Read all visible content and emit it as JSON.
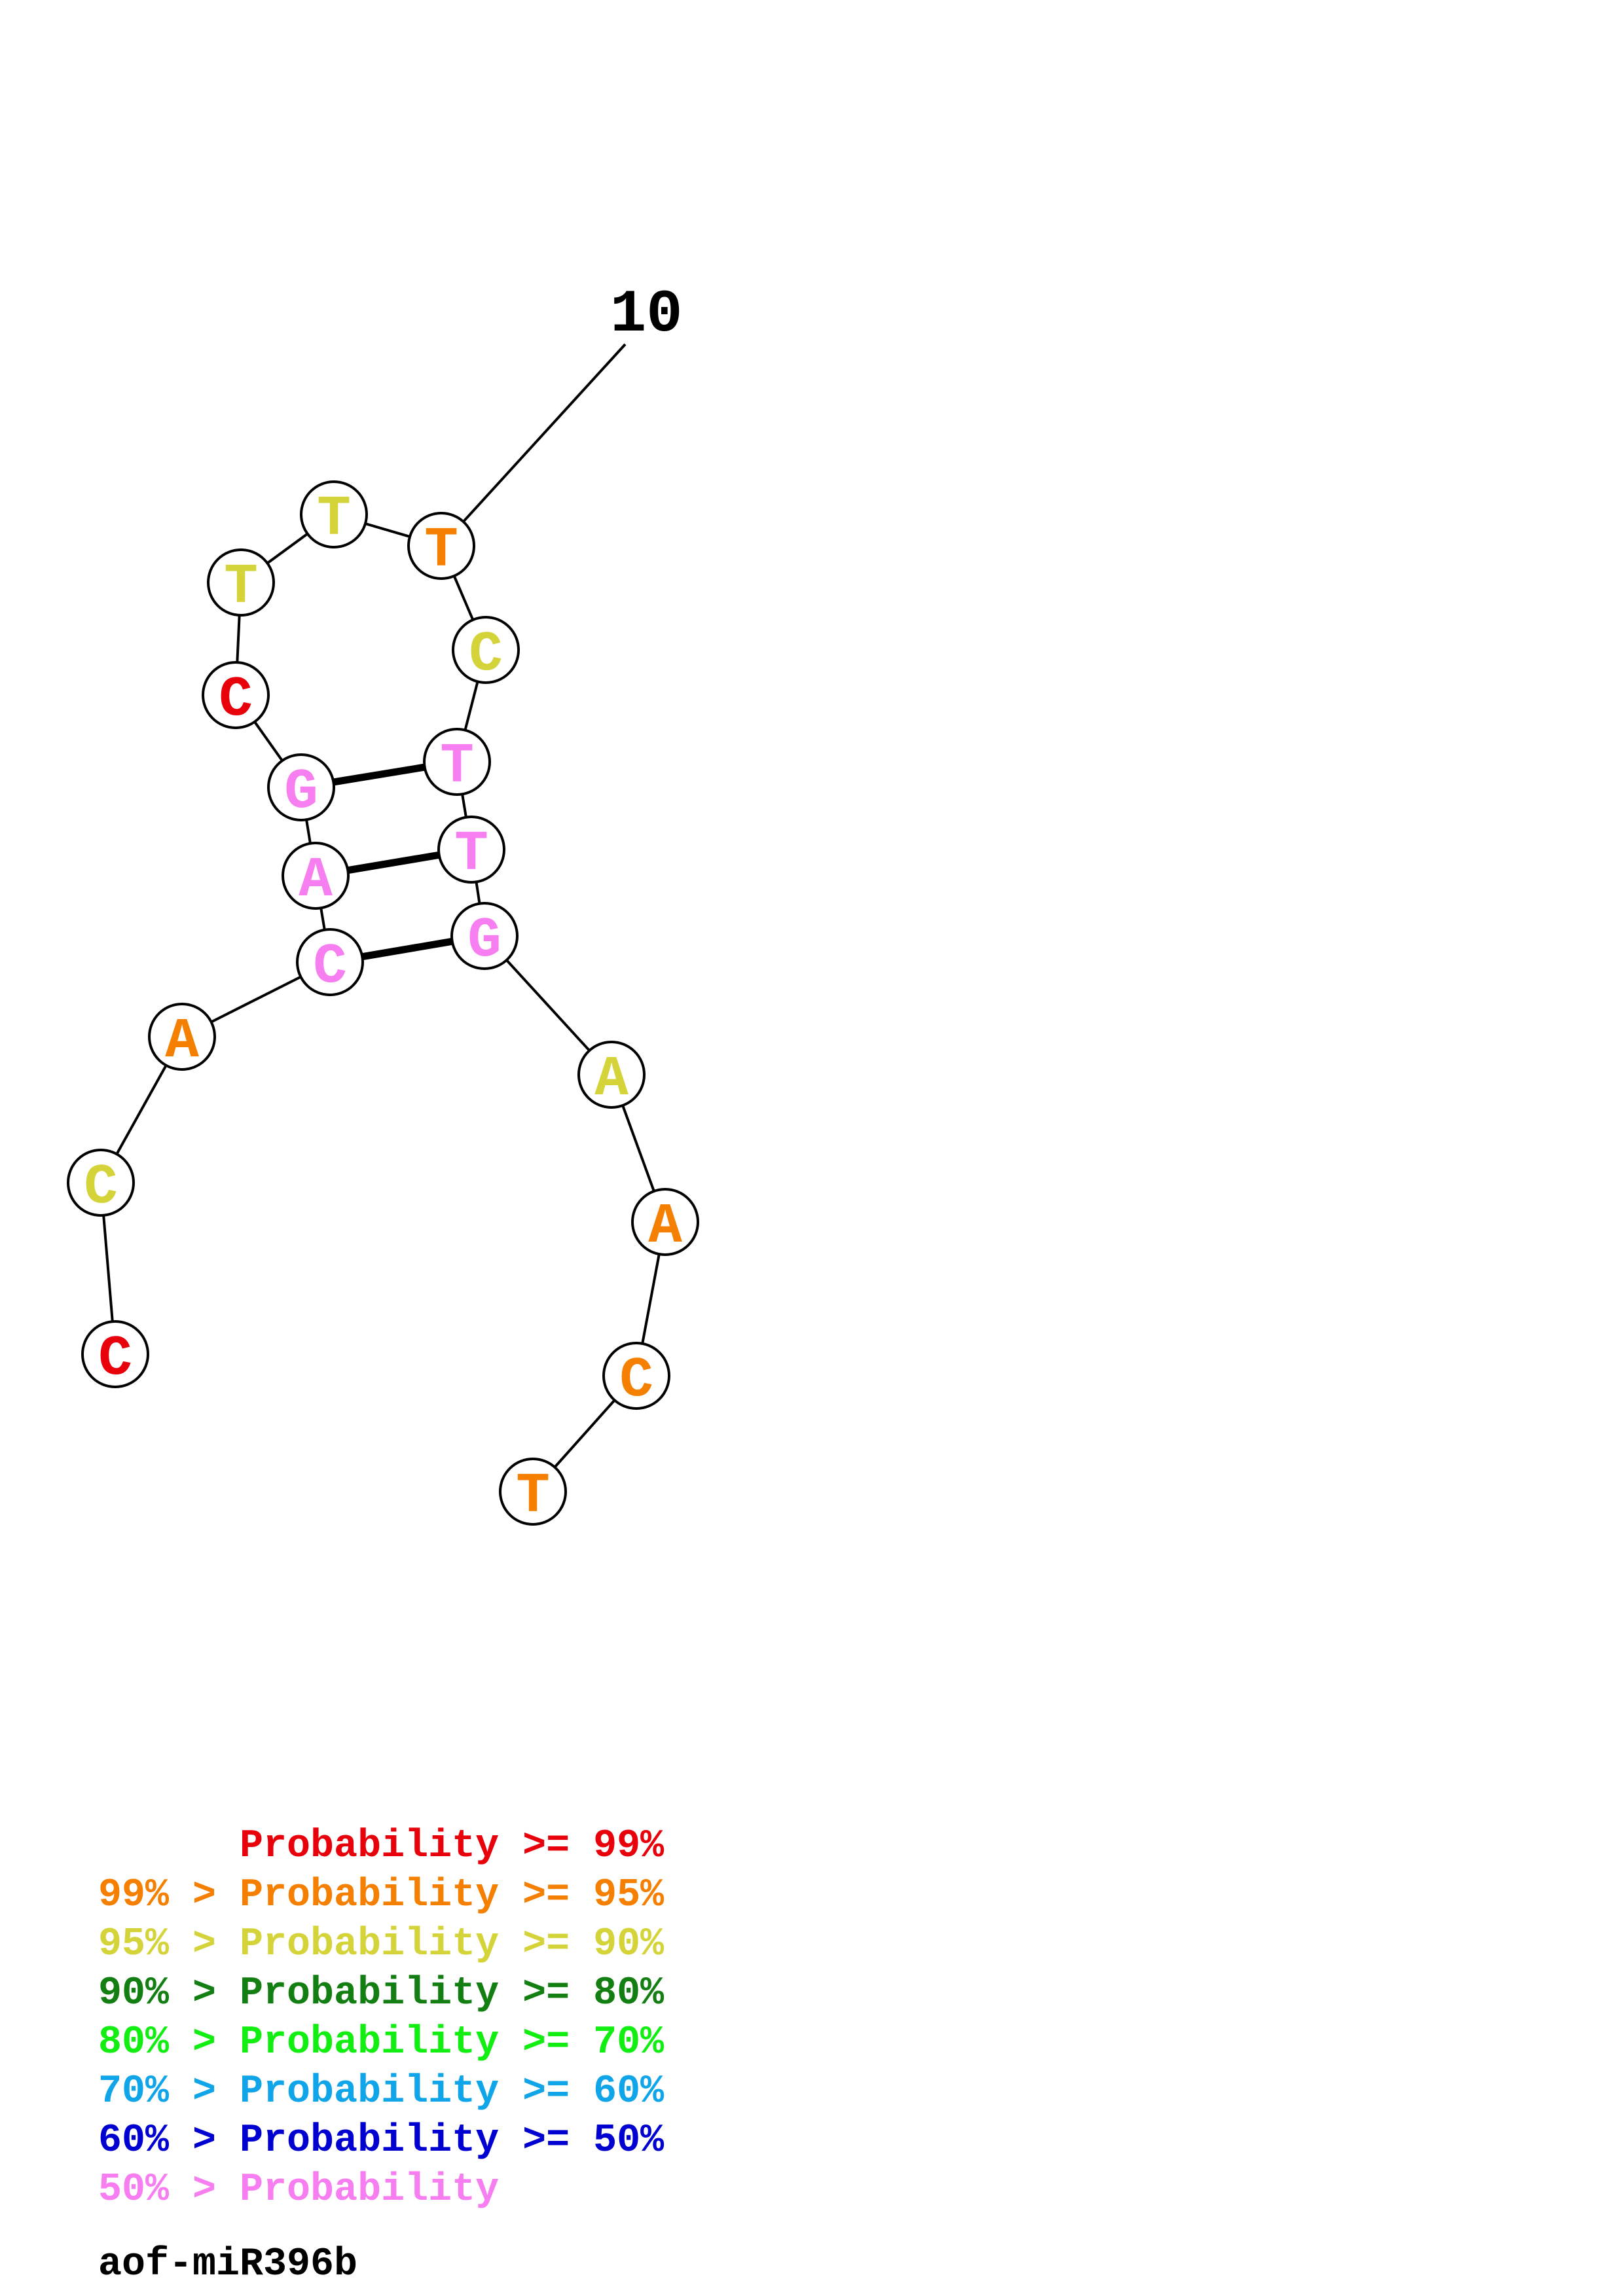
{
  "structure": {
    "sequence": [
      {
        "base": "C",
        "color": "#e8000b"
      },
      {
        "base": "C",
        "color": "#d4d43a"
      },
      {
        "base": "A",
        "color": "#f57f00"
      },
      {
        "base": "C",
        "color": "#f67ef0"
      },
      {
        "base": "A",
        "color": "#f67ef0"
      },
      {
        "base": "G",
        "color": "#f67ef0"
      },
      {
        "base": "C",
        "color": "#e8000b"
      },
      {
        "base": "T",
        "color": "#d4d43a"
      },
      {
        "base": "T",
        "color": "#d4d43a"
      },
      {
        "base": "T",
        "color": "#f57f00"
      },
      {
        "base": "C",
        "color": "#d4d43a"
      },
      {
        "base": "T",
        "color": "#f67ef0"
      },
      {
        "base": "T",
        "color": "#f67ef0"
      },
      {
        "base": "G",
        "color": "#f67ef0"
      },
      {
        "base": "A",
        "color": "#d4d43a"
      },
      {
        "base": "A",
        "color": "#f57f00"
      },
      {
        "base": "C",
        "color": "#f57f00"
      },
      {
        "base": "T",
        "color": "#f57f00"
      }
    ],
    "pairs": [
      [
        4,
        14
      ],
      [
        5,
        13
      ],
      [
        6,
        12
      ]
    ],
    "tick": {
      "label": "10",
      "position": 10
    }
  },
  "legend": [
    {
      "prefix": "",
      "text": "Probability >= 99%",
      "color": "#e8000b"
    },
    {
      "prefix": "99% > ",
      "text": "Probability >= 95%",
      "color": "#f57f00"
    },
    {
      "prefix": "95% > ",
      "text": "Probability >= 90%",
      "color": "#d4d43a"
    },
    {
      "prefix": "90% > ",
      "text": "Probability >= 80%",
      "color": "#137f13"
    },
    {
      "prefix": "80% > ",
      "text": "Probability >= 70%",
      "color": "#12ee12"
    },
    {
      "prefix": "70% > ",
      "text": "Probability >= 60%",
      "color": "#10a5e8"
    },
    {
      "prefix": "60% > ",
      "text": "Probability >= 50%",
      "color": "#0000d0"
    },
    {
      "prefix": "50% > ",
      "text": "Probability",
      "color": "#f67ef0"
    }
  ],
  "title": "aof-miR396b"
}
